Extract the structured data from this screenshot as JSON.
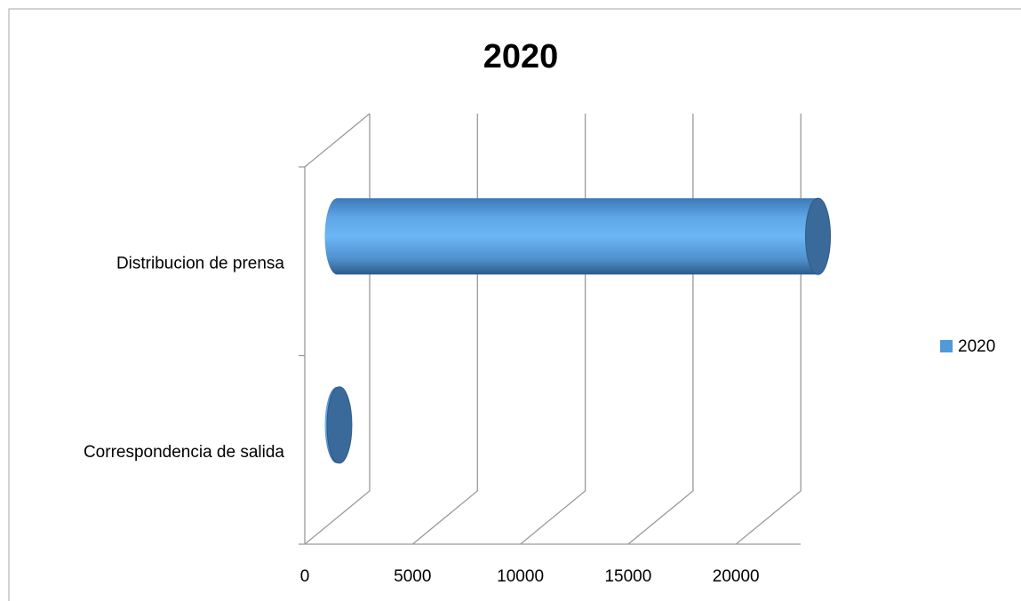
{
  "chart_data": {
    "type": "bar3d",
    "title": "2020",
    "categories": [
      "Correspondencia de salida",
      "Distribucion de prensa"
    ],
    "series": [
      {
        "name": "2020",
        "color": "#4f9ad8",
        "values": [
          100,
          22300
        ]
      }
    ],
    "xlim": [
      0,
      23000
    ],
    "xticks": [
      0,
      5000,
      10000,
      15000,
      20000
    ],
    "grid": true,
    "legend": "right"
  }
}
